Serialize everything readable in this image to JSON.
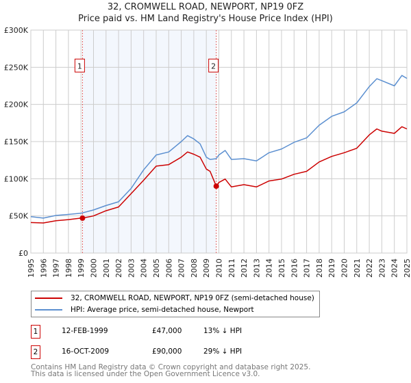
{
  "chart_data": {
    "type": "line",
    "title": "32, CROMWELL ROAD, NEWPORT, NP19 0FZ",
    "subtitle": "Price paid vs. HM Land Registry's House Price Index (HPI)",
    "xlim": [
      1995,
      2025
    ],
    "ylim": [
      0,
      300000
    ],
    "grid": true,
    "x_ticks": [
      "1995",
      "1996",
      "1997",
      "1998",
      "1999",
      "2000",
      "2001",
      "2002",
      "2003",
      "2004",
      "2005",
      "2006",
      "2007",
      "2008",
      "2009",
      "2010",
      "2011",
      "2012",
      "2013",
      "2014",
      "2015",
      "2016",
      "2017",
      "2018",
      "2019",
      "2020",
      "2021",
      "2022",
      "2023",
      "2024",
      "2025"
    ],
    "y_ticks": [
      {
        "v": 0,
        "label": "£0"
      },
      {
        "v": 50000,
        "label": "£50K"
      },
      {
        "v": 100000,
        "label": "£100K"
      },
      {
        "v": 150000,
        "label": "£150K"
      },
      {
        "v": 200000,
        "label": "£200K"
      },
      {
        "v": 250000,
        "label": "£250K"
      },
      {
        "v": 300000,
        "label": "£300K"
      }
    ],
    "shaded_region": [
      1999.12,
      2009.79
    ],
    "series": [
      {
        "name": "32, CROMWELL ROAD, NEWPORT, NP19 0FZ (semi-detached house)",
        "color": "#cc0000",
        "x": [
          1995,
          1996,
          1997,
          1998,
          1999,
          1999.12,
          2000,
          2001,
          2002,
          2003,
          2004,
          2005,
          2006,
          2007,
          2007.5,
          2008,
          2008.5,
          2009,
          2009.3,
          2009.79,
          2010,
          2010.5,
          2011,
          2012,
          2013,
          2014,
          2015,
          2016,
          2017,
          2018,
          2019,
          2020,
          2021,
          2022,
          2022.6,
          2023,
          2024,
          2024.6,
          2025
        ],
        "y": [
          41000,
          40500,
          43500,
          45000,
          47000,
          47000,
          50000,
          57000,
          62000,
          80000,
          98000,
          117000,
          119000,
          129000,
          136000,
          133000,
          129000,
          113000,
          110000,
          90000,
          95000,
          99600,
          89000,
          92000,
          89000,
          97000,
          99600,
          106000,
          110000,
          122600,
          130000,
          135000,
          141000,
          159000,
          167000,
          164000,
          161000,
          170000,
          167000
        ]
      },
      {
        "name": "HPI: Average price, semi-detached house, Newport",
        "color": "#5b8fd0",
        "x": [
          1995,
          1996,
          1997,
          1998,
          1999,
          2000,
          2001,
          2002,
          2003,
          2004,
          2005,
          2006,
          2007,
          2007.5,
          2008,
          2008.5,
          2009,
          2009.3,
          2009.79,
          2010,
          2010.5,
          2011,
          2012,
          2013,
          2014,
          2015,
          2016,
          2017,
          2018,
          2019,
          2020,
          2021,
          2022,
          2022.6,
          2023,
          2024,
          2024.6,
          2025
        ],
        "y": [
          49000,
          47000,
          50600,
          52000,
          53600,
          58000,
          64000,
          69000,
          87000,
          112000,
          132000,
          136000,
          150000,
          158000,
          153600,
          147000,
          129000,
          126000,
          127000,
          132000,
          138000,
          126000,
          127000,
          124000,
          135000,
          140000,
          149000,
          155000,
          172000,
          184000,
          190000,
          202000,
          224000,
          234600,
          232000,
          225000,
          239000,
          235000
        ]
      }
    ],
    "sales": [
      {
        "id": "1",
        "date": "12-FEB-1999",
        "x": 1999.12,
        "price": 47000,
        "price_label": "£47,000",
        "hpi_label": "13% ↓ HPI",
        "marker_value": 250000
      },
      {
        "id": "2",
        "date": "16-OCT-2009",
        "x": 2009.79,
        "price": 90000,
        "price_label": "£90,000",
        "hpi_label": "29% ↓ HPI",
        "marker_value": 250000
      }
    ]
  },
  "footer": {
    "line1": "Contains HM Land Registry data © Crown copyright and database right 2025.",
    "line2": "This data is licensed under the Open Government Licence v3.0."
  }
}
